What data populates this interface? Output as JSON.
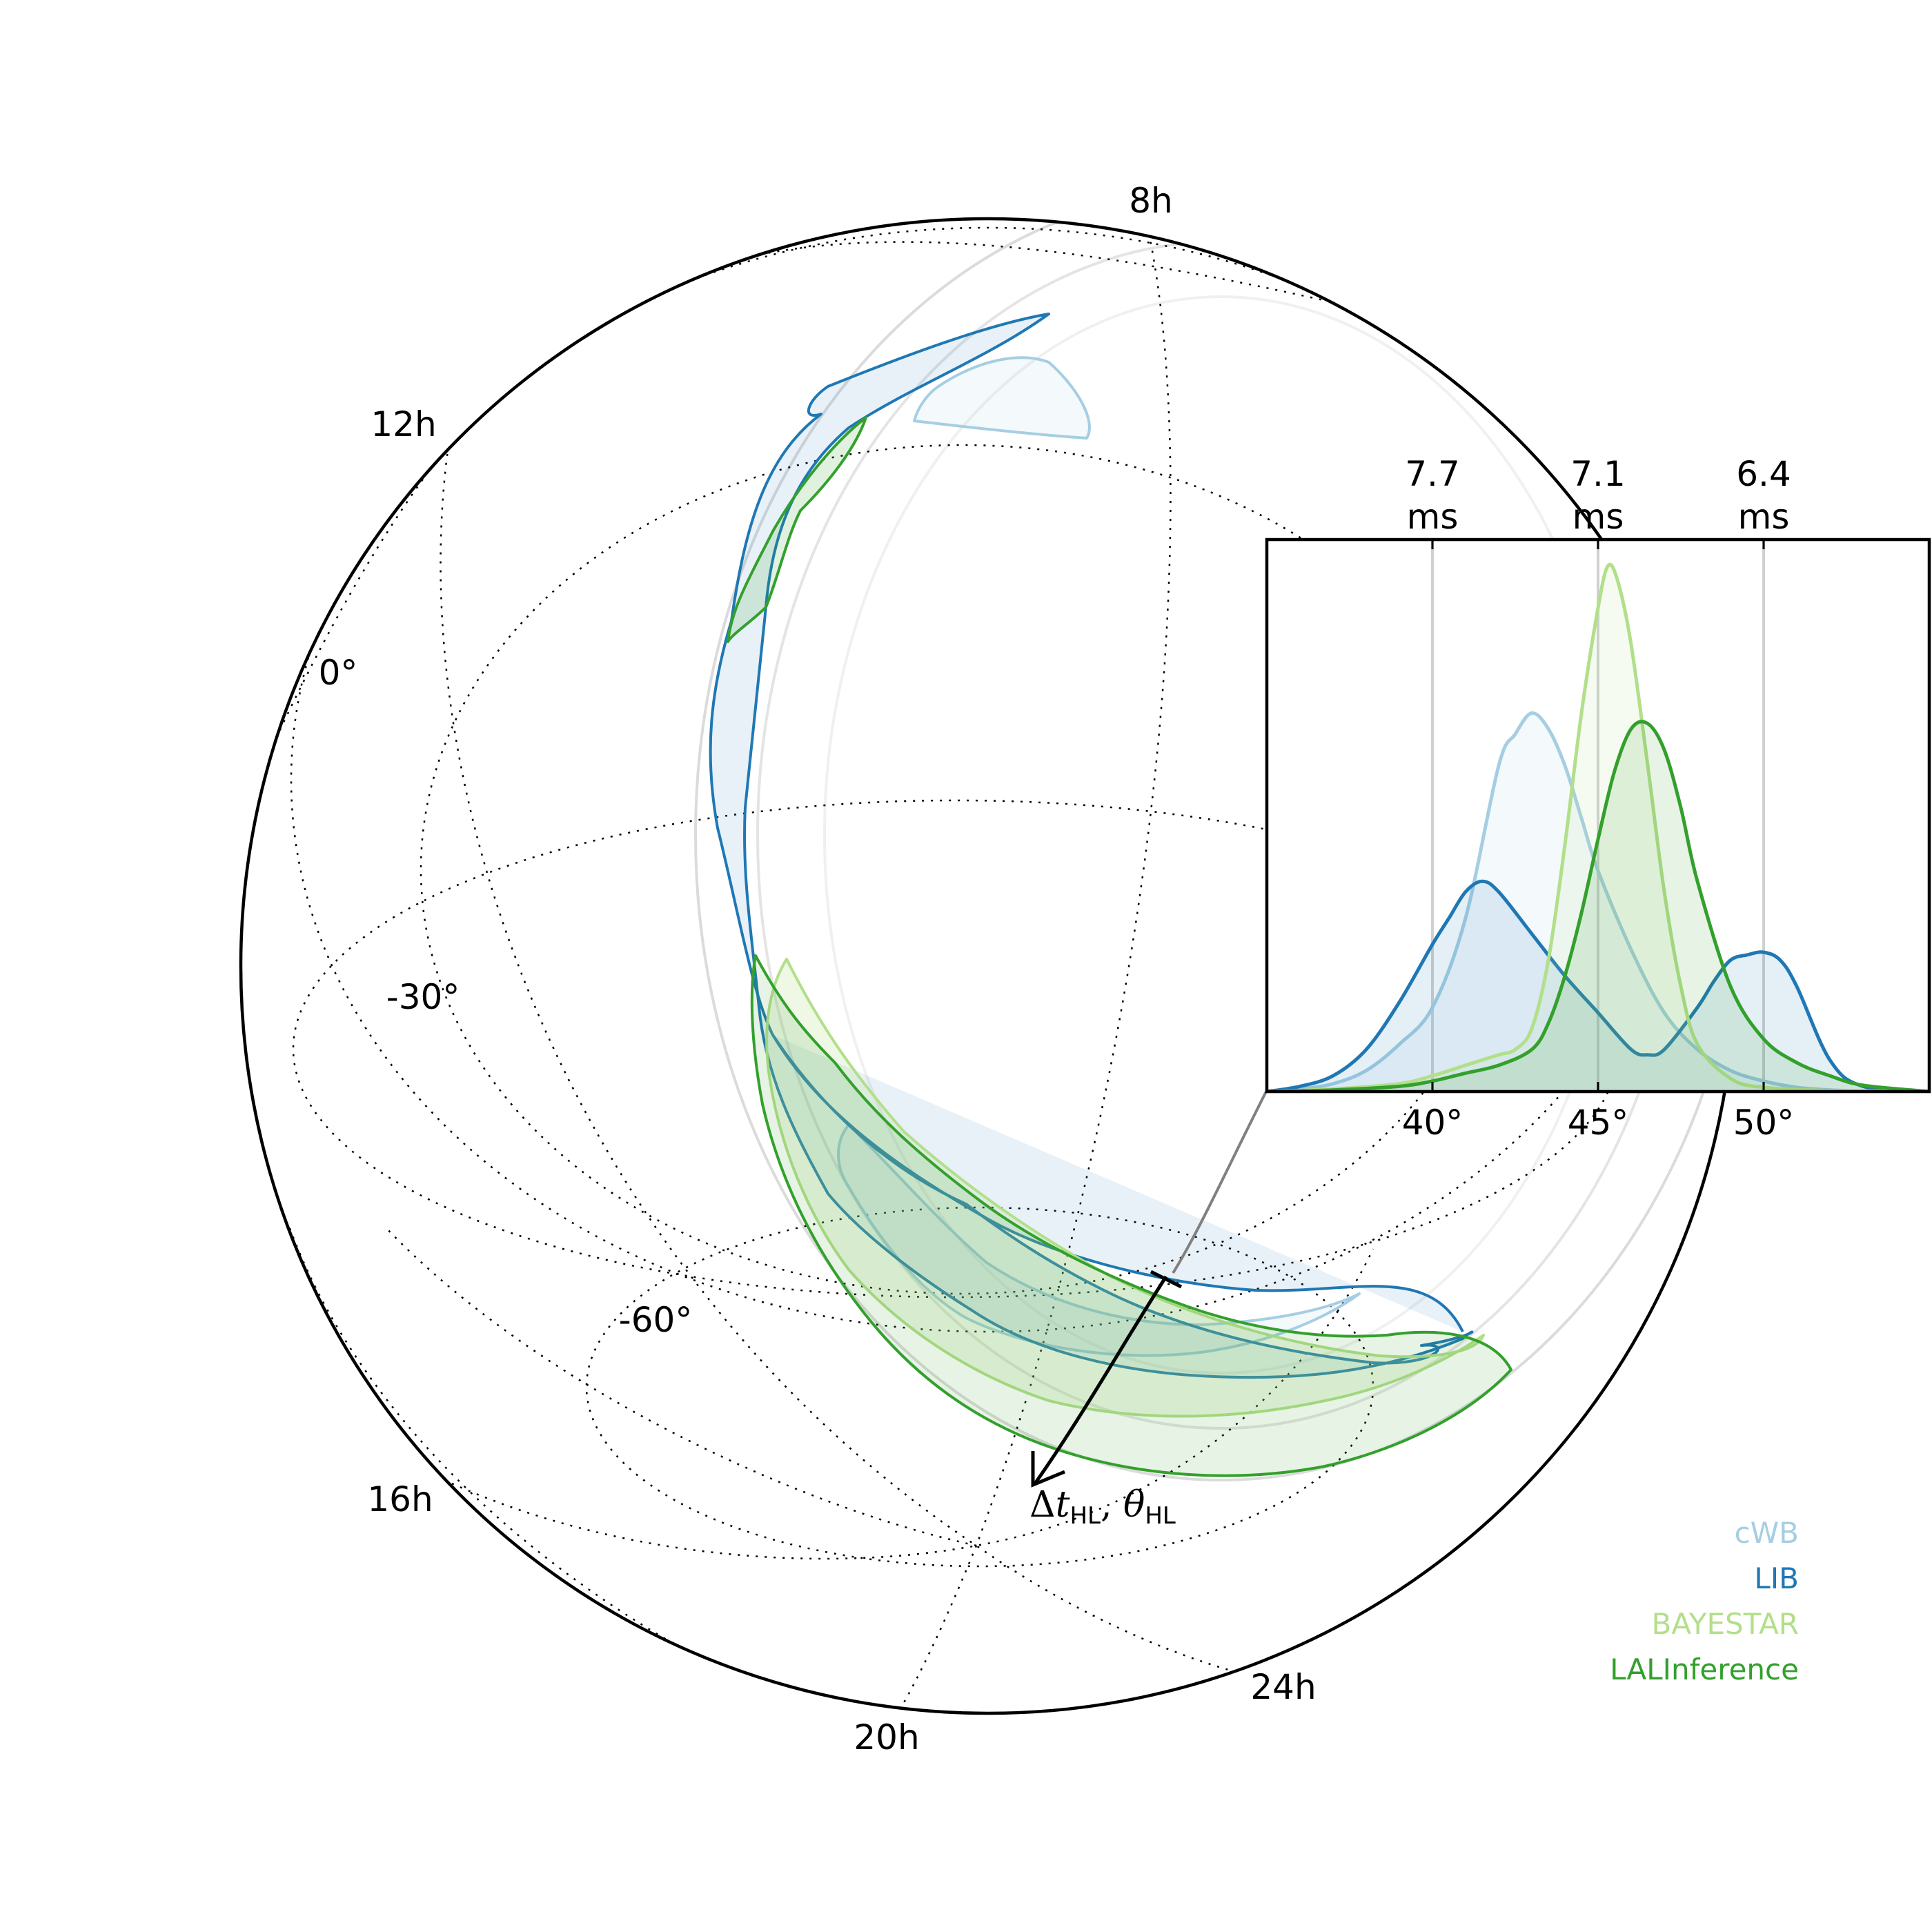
{
  "colors": {
    "cwb": "#a6cee3",
    "lib": "#1f78b4",
    "bayestar": "#b2df8a",
    "lalinference": "#33a02c",
    "annulus": "#d9d9d9",
    "grid": "#000000"
  },
  "sky_map": {
    "ra_labels": [
      "8h",
      "12h",
      "16h",
      "20h",
      "24h"
    ],
    "dec_labels": [
      "0°",
      "-30°",
      "-60°"
    ],
    "annotation": {
      "symbol": "Δ",
      "var_t": "t",
      "sub_t": "HL",
      "separator": ", ",
      "var_theta": "θ",
      "sub_theta": "HL"
    }
  },
  "legend": {
    "placement": "lower-right",
    "entries": [
      "cWB",
      "LIB",
      "BAYESTAR",
      "LALInference"
    ]
  },
  "chart_data": {
    "type": "area",
    "description_axis": "theta_HL in degrees with corresponding HL time delay",
    "x_ticks": [
      "40°",
      "45°",
      "50°"
    ],
    "x_tick_values": [
      40,
      45,
      50
    ],
    "top_ticks": [
      "7.7\nms",
      "7.1\nms",
      "6.4\nms"
    ],
    "top_tick_lines": [
      [
        "7.7",
        "ms"
      ],
      [
        "7.1",
        "ms"
      ],
      [
        "6.4",
        "ms"
      ]
    ],
    "top_tick_values": [
      40,
      45,
      50
    ],
    "xlim": [
      35,
      55
    ],
    "ylim": [
      0,
      1.05
    ],
    "grid": "vertical lines at top ticks",
    "series": [
      {
        "name": "cWB",
        "x": [
          35,
          36,
          37,
          38,
          39,
          40,
          41,
          42,
          42.5,
          43,
          43.5,
          44,
          44.5,
          45,
          46,
          47,
          48,
          49,
          50,
          51,
          52,
          53,
          55
        ],
        "values": [
          0,
          0.005,
          0.015,
          0.04,
          0.09,
          0.16,
          0.33,
          0.62,
          0.68,
          0.72,
          0.69,
          0.62,
          0.52,
          0.42,
          0.27,
          0.15,
          0.08,
          0.04,
          0.02,
          0.008,
          0.003,
          0.001,
          0
        ]
      },
      {
        "name": "LIB",
        "x": [
          35,
          36,
          37,
          38,
          39,
          40,
          40.5,
          41,
          41.5,
          42,
          43,
          44,
          45,
          46,
          46.5,
          47,
          48,
          48.5,
          49,
          49.5,
          50,
          50.5,
          51,
          52,
          53,
          55
        ],
        "values": [
          0,
          0.01,
          0.03,
          0.08,
          0.17,
          0.28,
          0.33,
          0.38,
          0.4,
          0.38,
          0.3,
          0.22,
          0.15,
          0.08,
          0.07,
          0.08,
          0.16,
          0.21,
          0.25,
          0.26,
          0.265,
          0.25,
          0.2,
          0.06,
          0.01,
          0
        ]
      },
      {
        "name": "BAYESTAR",
        "x": [
          35,
          37,
          39,
          40,
          41,
          42,
          42.5,
          43,
          43.5,
          44,
          44.5,
          45,
          45.3,
          45.6,
          46,
          46.5,
          47,
          47.5,
          48,
          49,
          50,
          52,
          55
        ],
        "values": [
          0,
          0.005,
          0.015,
          0.03,
          0.05,
          0.07,
          0.08,
          0.12,
          0.25,
          0.47,
          0.72,
          0.92,
          1.0,
          0.97,
          0.85,
          0.62,
          0.38,
          0.2,
          0.09,
          0.025,
          0.008,
          0.002,
          0
        ]
      },
      {
        "name": "LALInference",
        "x": [
          35,
          37,
          39,
          40,
          41,
          42,
          43,
          43.5,
          44,
          44.5,
          45,
          45.5,
          46,
          46.5,
          47,
          47.5,
          48,
          49,
          50,
          51,
          52,
          53,
          55
        ],
        "values": [
          0,
          0.003,
          0.01,
          0.02,
          0.035,
          0.05,
          0.08,
          0.13,
          0.22,
          0.34,
          0.48,
          0.61,
          0.69,
          0.7,
          0.65,
          0.54,
          0.4,
          0.2,
          0.1,
          0.055,
          0.03,
          0.012,
          0
        ]
      }
    ]
  }
}
